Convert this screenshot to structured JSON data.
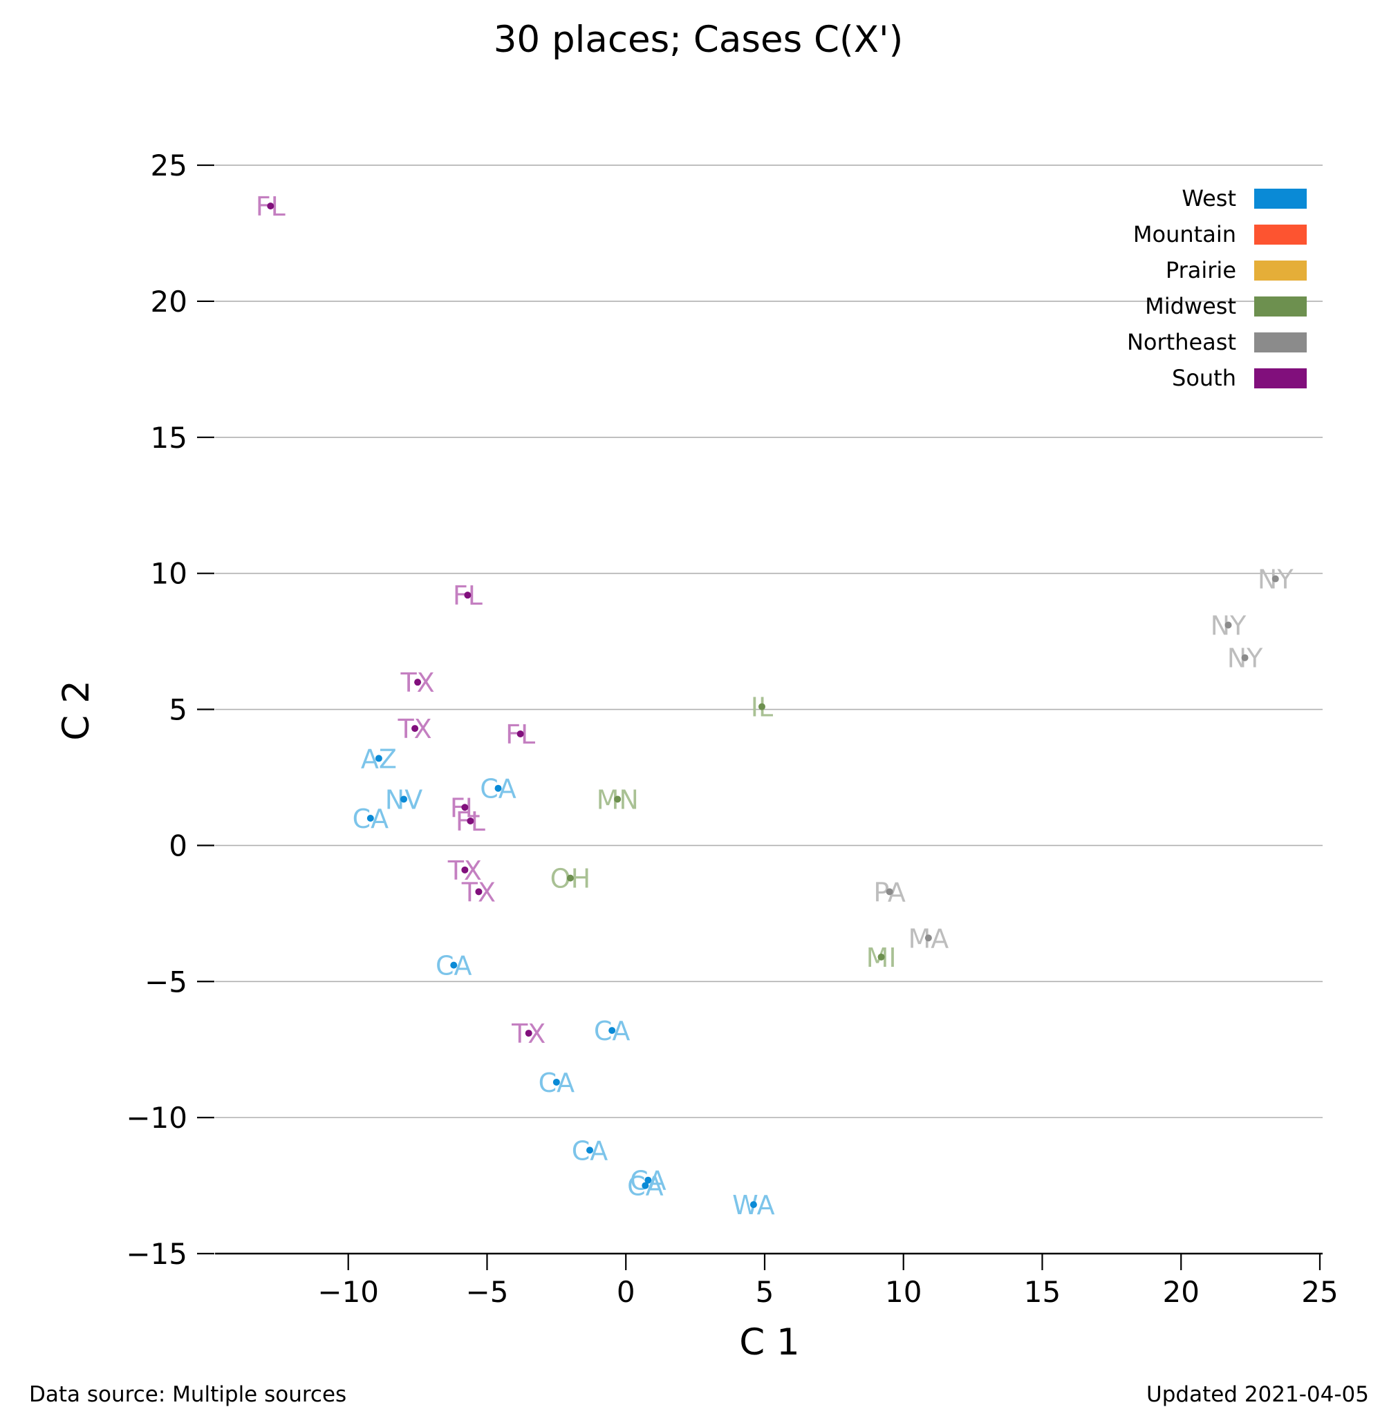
{
  "chart_data": {
    "type": "scatter",
    "title": "30 places; Cases C(X')",
    "xlabel": "C 1",
    "ylabel": "C 2",
    "xlim": [
      -14.8,
      25.1
    ],
    "ylim": [
      -15,
      26.5
    ],
    "xticks": [
      -10,
      -5,
      0,
      5,
      10,
      15,
      20,
      25
    ],
    "xtick_labels": [
      "−10",
      "−5",
      "0",
      "5",
      "10",
      "15",
      "20",
      "25"
    ],
    "yticks": [
      -15,
      -10,
      -5,
      0,
      5,
      10,
      15,
      20,
      25
    ],
    "ytick_labels": [
      "−15",
      "−10",
      "−5",
      "0",
      "5",
      "10",
      "15",
      "20",
      "25"
    ],
    "grid": "horizontal",
    "legend_position": "top-right",
    "legend": [
      {
        "name": "West",
        "color": "#0a8ad6"
      },
      {
        "name": "Mountain",
        "color": "#fd5430"
      },
      {
        "name": "Prairie",
        "color": "#e5ae38"
      },
      {
        "name": "Midwest",
        "color": "#6d904f"
      },
      {
        "name": "Northeast",
        "color": "#8b8b8b"
      },
      {
        "name": "South",
        "color": "#810f7c"
      }
    ],
    "region_colors": {
      "West": {
        "point": "#0a8ad6",
        "label": "#7cc4ea"
      },
      "Midwest": {
        "point": "#6d904f",
        "label": "#a9c194"
      },
      "Northeast": {
        "point": "#8b8b8b",
        "label": "#bdbdbd"
      },
      "South": {
        "point": "#810f7c",
        "label": "#c47fc1"
      }
    },
    "points": [
      {
        "label": "FL",
        "region": "South",
        "x": -12.8,
        "y": 23.5
      },
      {
        "label": "FL",
        "region": "South",
        "x": -5.7,
        "y": 9.2
      },
      {
        "label": "TX",
        "region": "South",
        "x": -7.5,
        "y": 6.0
      },
      {
        "label": "TX",
        "region": "South",
        "x": -7.6,
        "y": 4.3
      },
      {
        "label": "FL",
        "region": "South",
        "x": -3.8,
        "y": 4.1
      },
      {
        "label": "FL",
        "region": "South",
        "x": -5.8,
        "y": 1.4
      },
      {
        "label": "FL",
        "region": "South",
        "x": -5.6,
        "y": 0.9
      },
      {
        "label": "TX",
        "region": "South",
        "x": -5.8,
        "y": -0.9
      },
      {
        "label": "TX",
        "region": "South",
        "x": -5.3,
        "y": -1.7
      },
      {
        "label": "TX",
        "region": "South",
        "x": -3.5,
        "y": -6.9
      },
      {
        "label": "AZ",
        "region": "West",
        "x": -8.9,
        "y": 3.2
      },
      {
        "label": "NV",
        "region": "West",
        "x": -8.0,
        "y": 1.7
      },
      {
        "label": "CA",
        "region": "West",
        "x": -9.2,
        "y": 1.0
      },
      {
        "label": "CA",
        "region": "West",
        "x": -4.6,
        "y": 2.1
      },
      {
        "label": "CA",
        "region": "West",
        "x": -6.2,
        "y": -4.4
      },
      {
        "label": "CA",
        "region": "West",
        "x": -0.5,
        "y": -6.8
      },
      {
        "label": "CA",
        "region": "West",
        "x": -2.5,
        "y": -8.7
      },
      {
        "label": "CA",
        "region": "West",
        "x": -1.3,
        "y": -11.2
      },
      {
        "label": "CA",
        "region": "West",
        "x": 0.8,
        "y": -12.3
      },
      {
        "label": "CA",
        "region": "West",
        "x": 0.7,
        "y": -12.5
      },
      {
        "label": "WA",
        "region": "West",
        "x": 4.6,
        "y": -13.2
      },
      {
        "label": "IL",
        "region": "Midwest",
        "x": 4.9,
        "y": 5.1
      },
      {
        "label": "MN",
        "region": "Midwest",
        "x": -0.3,
        "y": 1.7
      },
      {
        "label": "OH",
        "region": "Midwest",
        "x": -2.0,
        "y": -1.2
      },
      {
        "label": "MI",
        "region": "Midwest",
        "x": 9.2,
        "y": -4.1
      },
      {
        "label": "PA",
        "region": "Northeast",
        "x": 9.5,
        "y": -1.7
      },
      {
        "label": "MA",
        "region": "Northeast",
        "x": 10.9,
        "y": -3.4
      },
      {
        "label": "NY",
        "region": "Northeast",
        "x": 23.4,
        "y": 9.8
      },
      {
        "label": "NY",
        "region": "Northeast",
        "x": 21.7,
        "y": 8.1
      },
      {
        "label": "NY",
        "region": "Northeast",
        "x": 22.3,
        "y": 6.9
      }
    ]
  },
  "footer": {
    "source": "Data source: Multiple sources",
    "updated": "Updated 2021-04-05"
  }
}
